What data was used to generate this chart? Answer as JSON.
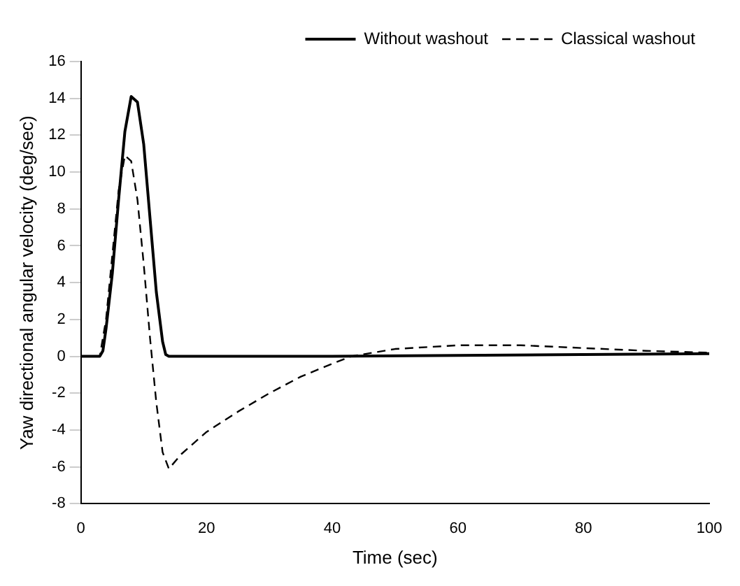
{
  "chart_data": {
    "type": "line",
    "xlabel": "Time (sec)",
    "ylabel": "Yaw directional angular velocity (deg/sec)",
    "xlim": [
      0,
      100
    ],
    "xticks": [
      0,
      20,
      40,
      60,
      80,
      100
    ],
    "ylim": [
      -8,
      16
    ],
    "yticks": [
      -8,
      -6,
      -4,
      -2,
      0,
      2,
      4,
      6,
      8,
      10,
      12,
      14,
      16
    ],
    "grid": false,
    "legend": "top right",
    "marker": "none",
    "series": [
      {
        "name": "Without washout",
        "color": "#000000",
        "line_style": "solid",
        "x": [
          0,
          3,
          3.5,
          4,
          5,
          6,
          7,
          8,
          9,
          10,
          11,
          12,
          13,
          13.5,
          14,
          40,
          60,
          100
        ],
        "values": [
          0,
          0,
          0.3,
          1.5,
          4.5,
          8.5,
          12.2,
          14.1,
          13.8,
          11.5,
          7.5,
          3.5,
          0.8,
          0.1,
          0,
          0,
          0.05,
          0.15
        ]
      },
      {
        "name": "Classical washout",
        "color": "#000000",
        "line_style": "dashed",
        "x": [
          0,
          3,
          4,
          5,
          6,
          7,
          8,
          9,
          10,
          11,
          12,
          13,
          14,
          16,
          20,
          25,
          30,
          35,
          40,
          43,
          50,
          60,
          70,
          80,
          90,
          100
        ],
        "values": [
          0,
          0,
          2,
          5.5,
          9,
          10.9,
          10.6,
          8.5,
          5,
          1,
          -2.5,
          -5.2,
          -6.1,
          -5.3,
          -4.1,
          -3,
          -2,
          -1.1,
          -0.4,
          0,
          0.4,
          0.6,
          0.6,
          0.45,
          0.3,
          0.2
        ]
      }
    ]
  }
}
